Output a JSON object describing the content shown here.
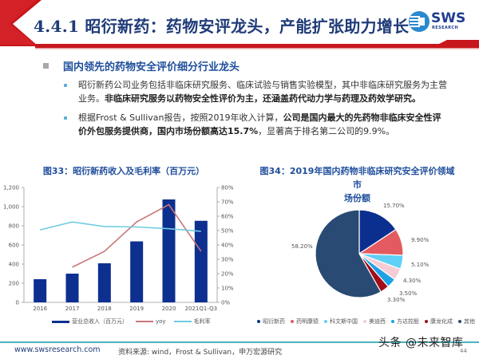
{
  "header": {
    "title": "4.4.1 昭衍新药：药物安评龙头，产能扩张助力增长",
    "logo_text": "SWS",
    "logo_sub": "RESEARCH",
    "accent_red": "#c8161d",
    "title_color": "#1f3b78"
  },
  "section": {
    "title": "国内领先的药物安全评价细分行业龙头",
    "bullets": [
      {
        "normal": "昭衍新药公司业务包括非临床研究服务、临床试验与销售实验模型，其中非临床研究服务为主营业务。",
        "bold": "非临床研究服务以药物安全性评价为主，还涵盖药代动力学与药理及药效学研究。",
        "tail": ""
      },
      {
        "normal": "根据Frost & Sullivan报告，按照2019年收入计算，",
        "bold": "公司是国内最大的先药物非临床安全性评价外包服务提供商，国内市场份额高达15.7%",
        "tail": "，显著高于排名第二公司的9.9%。"
      }
    ]
  },
  "chart_data": [
    {
      "type": "bar",
      "title": "图33：昭衍新药收入及毛利率（百万元）",
      "categories": [
        "2016",
        "2017",
        "2018",
        "2019",
        "2020",
        "2021Q1-Q3"
      ],
      "series": [
        {
          "name": "营业总收入（百万元）",
          "kind": "bar",
          "axis": "left",
          "color": "#0d2f8f",
          "values": [
            242,
            300,
            408,
            637,
            1075,
            852
          ]
        },
        {
          "name": "yoy",
          "kind": "line",
          "axis": "right",
          "color": "#c9767a",
          "values": [
            null,
            24.5,
            35.5,
            56.0,
            68.0,
            35.5
          ]
        },
        {
          "name": "毛利率",
          "kind": "line",
          "axis": "right",
          "color": "#6fcde0",
          "values": [
            50.5,
            56.0,
            52.8,
            52.5,
            51.3,
            49.5
          ]
        }
      ],
      "left_axis": {
        "ticks": [
          "0",
          "200",
          "400",
          "600",
          "800",
          "1,000",
          "1,200"
        ],
        "ylim": [
          0,
          1200
        ]
      },
      "right_axis": {
        "ticks": [
          "0%",
          "10%",
          "20%",
          "30%",
          "40%",
          "50%",
          "60%",
          "70%",
          "80%"
        ],
        "ylim": [
          0,
          80
        ]
      },
      "legend_position": "bottom",
      "grid": false
    },
    {
      "type": "pie",
      "title": "图34：2019年国内药物非临床研究安全评价领域市场份额",
      "title_line1": "图34：2019年国内药物非临床研究安全评价领域市",
      "title_line2": "场份额",
      "slices": [
        {
          "label": "昭衍新药",
          "value": 15.7,
          "display": "15.70%",
          "color": "#0a2f8f"
        },
        {
          "label": "药明康德",
          "value": 9.9,
          "display": "9.90%",
          "color": "#e35b61"
        },
        {
          "label": "科文斯中国",
          "value": 5.1,
          "display": "5.10%",
          "color": "#5fd0f5"
        },
        {
          "label": "美迪西",
          "value": 4.3,
          "display": "4.30%",
          "color": "#f6cdd4"
        },
        {
          "label": "方达控股",
          "value": 3.5,
          "display": "3.50%",
          "color": "#1ea2e6"
        },
        {
          "label": "康龙化成",
          "value": 3.3,
          "display": "3.30%",
          "color": "#a10d1a"
        },
        {
          "label": "其他",
          "value": 58.2,
          "display": "58.20%",
          "color": "#294a72"
        }
      ],
      "legend_position": "bottom"
    }
  ],
  "footer": {
    "url": "www.swsresearch.com",
    "source": "资料来源: wind，Frost & Sullivan，申万宏源研究",
    "watermark": "头条 @未来智库",
    "page": "44"
  }
}
